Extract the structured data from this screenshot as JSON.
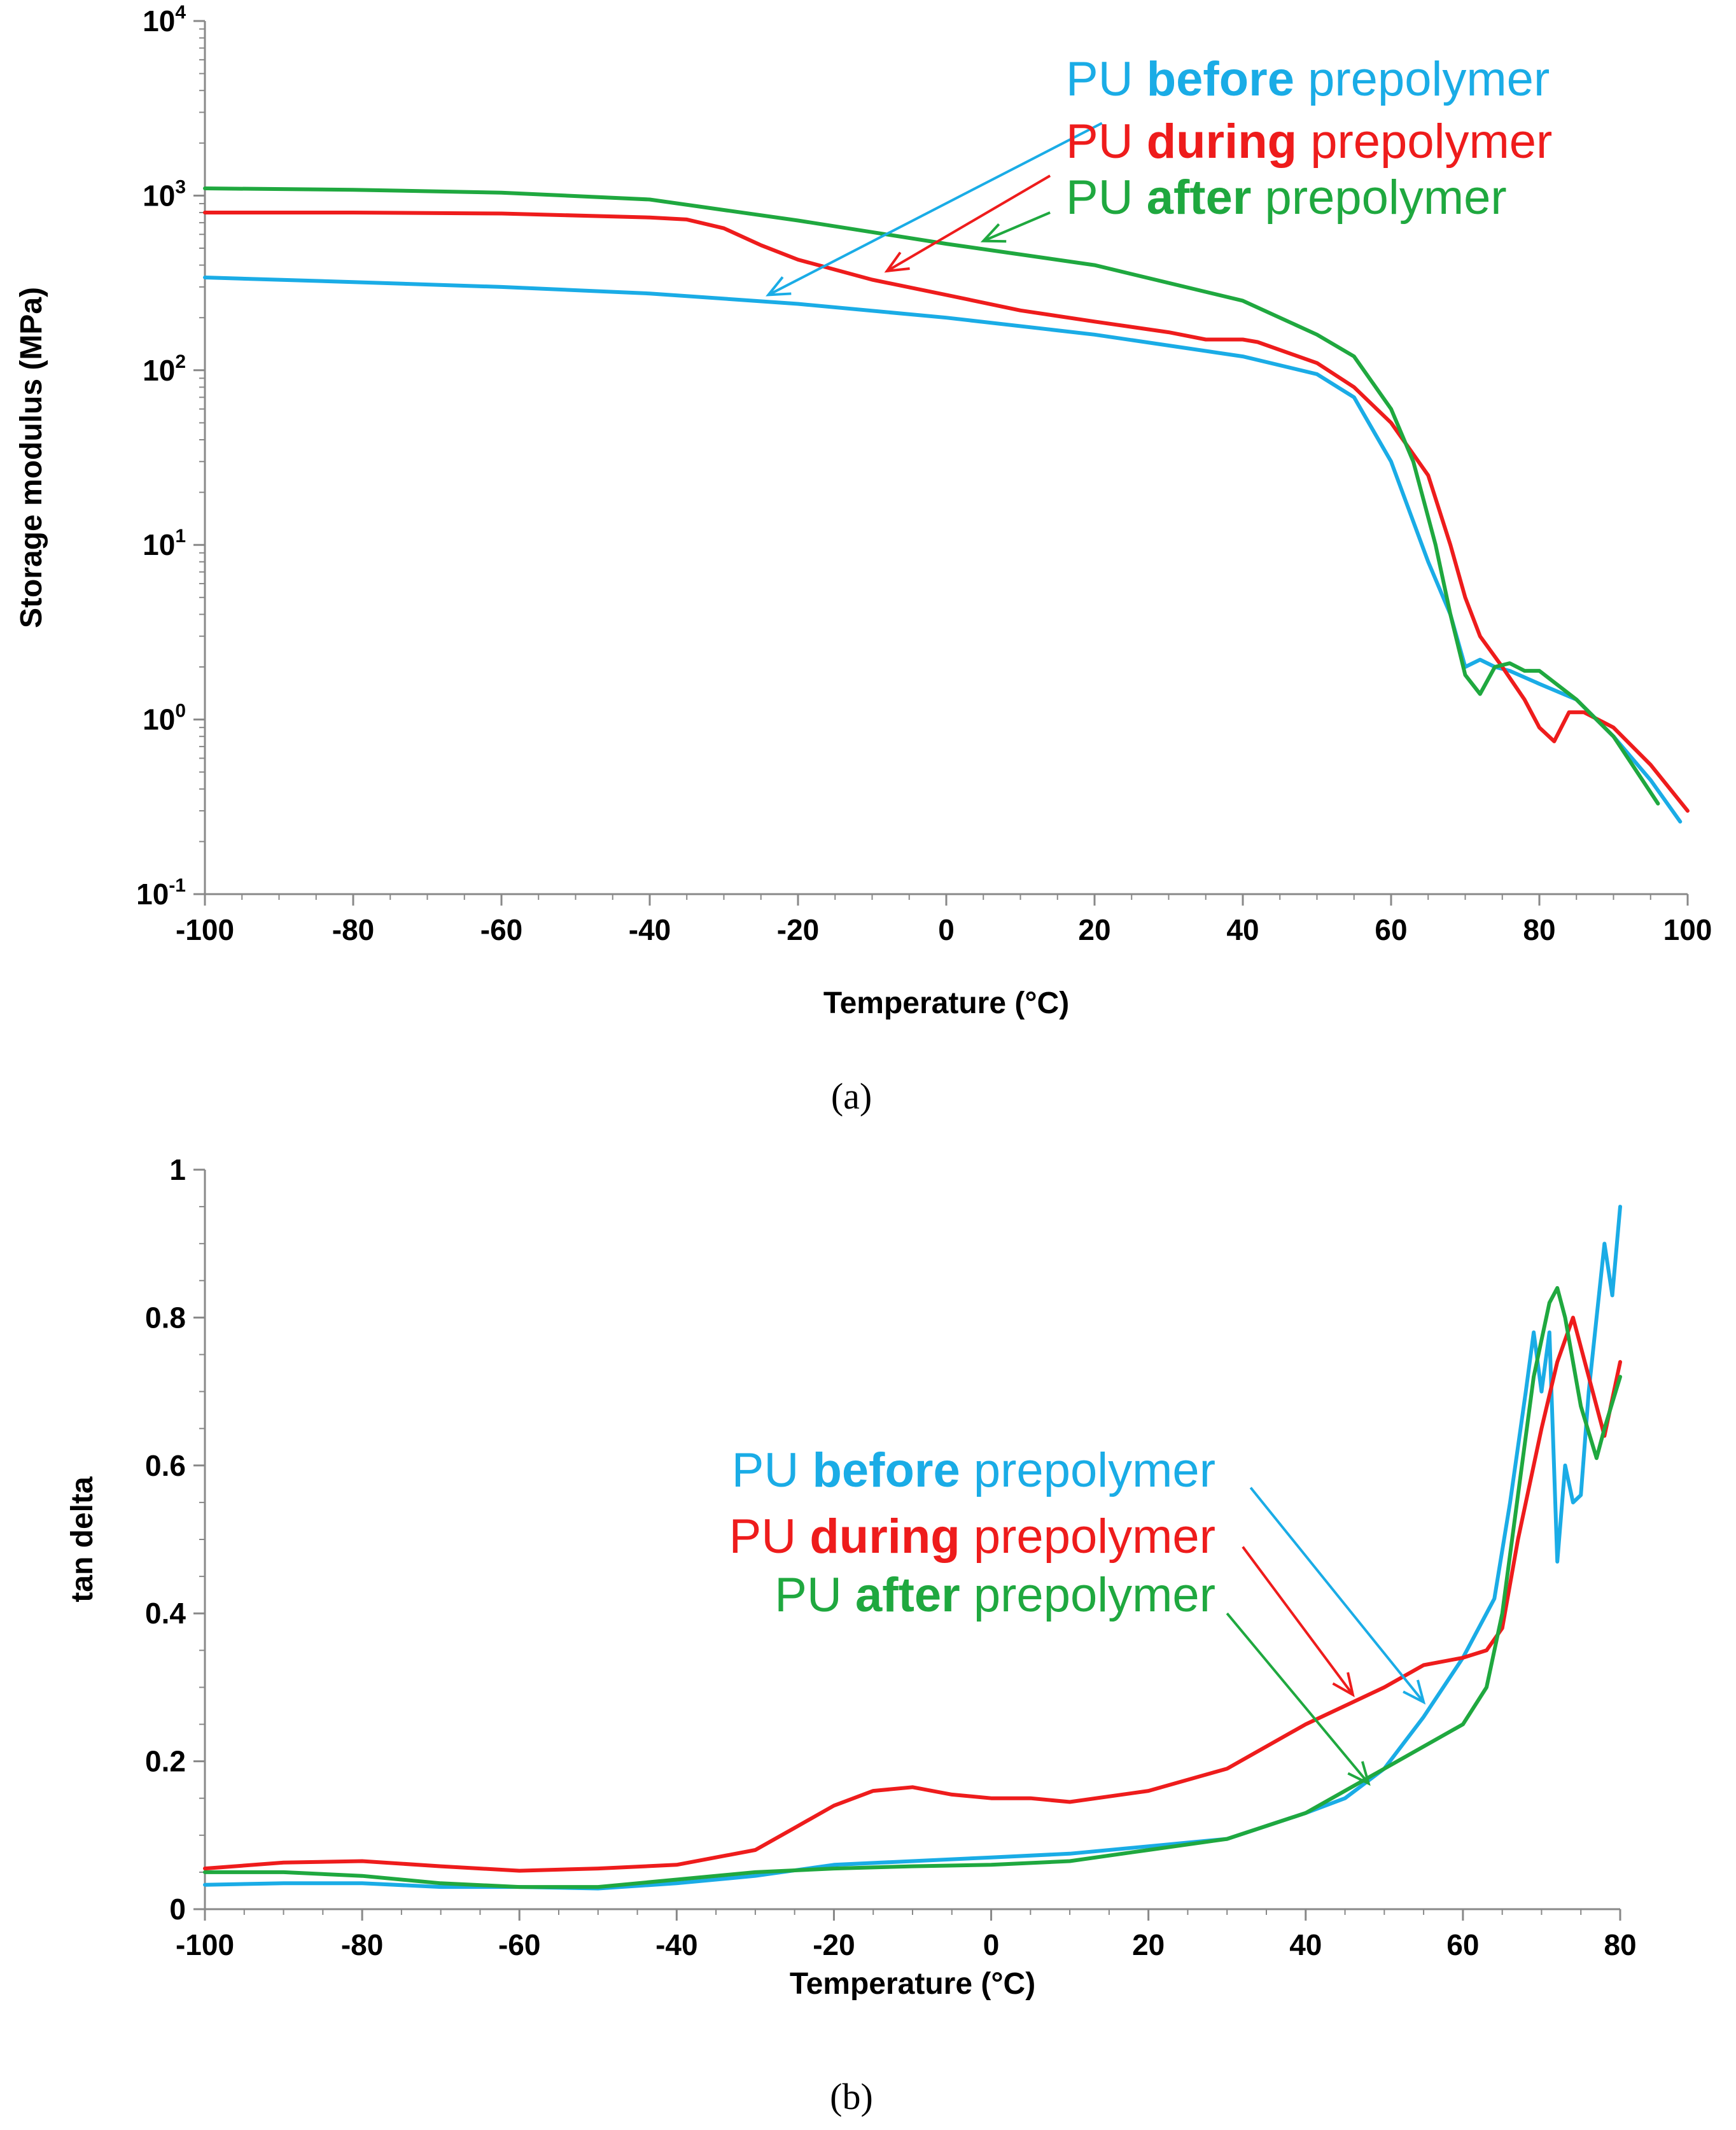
{
  "colors": {
    "before": "#1aace6",
    "during": "#ee1c1c",
    "after": "#1fa83f"
  },
  "chart_data": [
    {
      "type": "line",
      "caption": "(a)",
      "xlabel": "Temperature (°C)",
      "ylabel": "Storage modulus (MPa)",
      "yscale": "log",
      "xlim": [
        -100,
        100
      ],
      "ylim": [
        0.1,
        10000
      ],
      "xticks": [
        -100,
        -80,
        -60,
        -40,
        -20,
        0,
        20,
        40,
        60,
        80,
        100
      ],
      "yticks": [
        {
          "base": "10",
          "exp": "-1",
          "value": 0.1
        },
        {
          "base": "10",
          "exp": "0",
          "value": 1
        },
        {
          "base": "10",
          "exp": "1",
          "value": 10
        },
        {
          "base": "10",
          "exp": "2",
          "value": 100
        },
        {
          "base": "10",
          "exp": "3",
          "value": 1000
        },
        {
          "base": "10",
          "exp": "4",
          "value": 10000
        }
      ],
      "legend": [
        {
          "key": "before",
          "pre": "PU ",
          "bold": "before",
          "post": " prepolymer",
          "arrow_from": [
            21,
            2600
          ],
          "arrow_to": [
            -24,
            270
          ]
        },
        {
          "key": "during",
          "pre": "PU ",
          "bold": "during",
          "post": " prepolymer",
          "arrow_from": [
            14,
            1300
          ],
          "arrow_to": [
            -8,
            370
          ]
        },
        {
          "key": "after",
          "pre": "PU ",
          "bold": "after",
          "post": " prepolymer",
          "arrow_from": [
            14,
            800
          ],
          "arrow_to": [
            5,
            550
          ]
        }
      ],
      "series": [
        {
          "name": "PU before prepolymer",
          "key": "before",
          "x": [
            -100,
            -80,
            -60,
            -40,
            -20,
            0,
            20,
            40,
            50,
            55,
            60,
            65,
            68,
            70,
            72,
            74,
            76,
            80,
            85,
            90,
            95,
            99
          ],
          "y": [
            340,
            320,
            300,
            275,
            240,
            200,
            160,
            120,
            95,
            70,
            30,
            8,
            4,
            2.0,
            2.2,
            2.0,
            1.9,
            1.6,
            1.3,
            0.8,
            0.45,
            0.26
          ]
        },
        {
          "name": "PU during prepolymer",
          "key": "during",
          "x": [
            -100,
            -80,
            -60,
            -40,
            -35,
            -30,
            -25,
            -20,
            -10,
            0,
            10,
            20,
            30,
            35,
            40,
            42,
            50,
            55,
            60,
            65,
            68,
            70,
            72,
            75,
            78,
            80,
            82,
            84,
            86,
            90,
            95,
            100
          ],
          "y": [
            800,
            800,
            790,
            750,
            730,
            650,
            520,
            430,
            330,
            270,
            220,
            190,
            165,
            150,
            150,
            145,
            110,
            80,
            50,
            25,
            10,
            5,
            3,
            2.0,
            1.3,
            0.9,
            0.75,
            1.1,
            1.1,
            0.9,
            0.55,
            0.3
          ]
        },
        {
          "name": "PU after prepolymer",
          "key": "after",
          "x": [
            -100,
            -80,
            -60,
            -40,
            -20,
            0,
            20,
            40,
            50,
            55,
            60,
            63,
            66,
            68,
            70,
            72,
            74,
            76,
            78,
            80,
            85,
            90,
            96
          ],
          "y": [
            1100,
            1080,
            1040,
            950,
            720,
            530,
            400,
            250,
            160,
            120,
            60,
            30,
            10,
            4,
            1.8,
            1.4,
            2.0,
            2.1,
            1.9,
            1.9,
            1.3,
            0.8,
            0.33
          ]
        }
      ]
    },
    {
      "type": "line",
      "caption": "(b)",
      "xlabel": "Temperature (°C)",
      "ylabel": "tan delta",
      "yscale": "linear",
      "xlim": [
        -100,
        80
      ],
      "ylim": [
        0,
        1
      ],
      "xticks": [
        -100,
        -80,
        -60,
        -40,
        -20,
        0,
        20,
        40,
        60,
        80
      ],
      "yticks": [
        {
          "base": "0",
          "value": 0
        },
        {
          "base": "0.2",
          "value": 0.2
        },
        {
          "base": "0.4",
          "value": 0.4
        },
        {
          "base": "0.6",
          "value": 0.6
        },
        {
          "base": "0.8",
          "value": 0.8
        },
        {
          "base": "1",
          "value": 1
        }
      ],
      "legend": [
        {
          "key": "before",
          "pre": "PU ",
          "bold": "before",
          "post": " prepolymer",
          "arrow_from": [
            33,
            0.57
          ],
          "arrow_to": [
            55,
            0.28
          ]
        },
        {
          "key": "during",
          "pre": "PU ",
          "bold": "during",
          "post": " prepolymer",
          "arrow_from": [
            32,
            0.49
          ],
          "arrow_to": [
            46,
            0.29
          ]
        },
        {
          "key": "after",
          "pre": "PU ",
          "bold": "after",
          "post": " prepolymer",
          "arrow_from": [
            30,
            0.4
          ],
          "arrow_to": [
            48,
            0.17
          ]
        }
      ],
      "series": [
        {
          "name": "PU before prepolymer",
          "key": "before",
          "x": [
            -100,
            -90,
            -80,
            -70,
            -60,
            -50,
            -40,
            -30,
            -20,
            -10,
            0,
            10,
            20,
            30,
            40,
            45,
            50,
            55,
            60,
            64,
            66,
            68,
            69,
            70,
            71,
            72,
            73,
            74,
            75,
            76,
            77,
            78,
            79,
            80
          ],
          "y": [
            0.033,
            0.035,
            0.035,
            0.03,
            0.03,
            0.028,
            0.035,
            0.045,
            0.06,
            0.065,
            0.07,
            0.075,
            0.085,
            0.095,
            0.13,
            0.15,
            0.19,
            0.26,
            0.34,
            0.42,
            0.55,
            0.7,
            0.78,
            0.7,
            0.78,
            0.47,
            0.6,
            0.55,
            0.56,
            0.7,
            0.8,
            0.9,
            0.83,
            0.95
          ]
        },
        {
          "name": "PU during prepolymer",
          "key": "during",
          "x": [
            -100,
            -90,
            -80,
            -70,
            -60,
            -50,
            -40,
            -30,
            -25,
            -20,
            -15,
            -10,
            -5,
            0,
            5,
            10,
            20,
            30,
            40,
            50,
            55,
            60,
            63,
            65,
            67,
            70,
            72,
            74,
            76,
            78,
            80
          ],
          "y": [
            0.055,
            0.063,
            0.065,
            0.058,
            0.052,
            0.055,
            0.06,
            0.08,
            0.11,
            0.14,
            0.16,
            0.165,
            0.155,
            0.15,
            0.15,
            0.145,
            0.16,
            0.19,
            0.25,
            0.3,
            0.33,
            0.34,
            0.35,
            0.38,
            0.5,
            0.65,
            0.74,
            0.8,
            0.72,
            0.64,
            0.74
          ]
        },
        {
          "name": "PU after prepolymer",
          "key": "after",
          "x": [
            -100,
            -90,
            -80,
            -70,
            -60,
            -50,
            -40,
            -30,
            -20,
            -10,
            0,
            10,
            20,
            30,
            40,
            50,
            55,
            60,
            63,
            65,
            67,
            69,
            71,
            72,
            73,
            75,
            77,
            78,
            80
          ],
          "y": [
            0.05,
            0.05,
            0.045,
            0.035,
            0.03,
            0.03,
            0.04,
            0.05,
            0.055,
            0.058,
            0.06,
            0.065,
            0.08,
            0.095,
            0.13,
            0.19,
            0.22,
            0.25,
            0.3,
            0.4,
            0.56,
            0.72,
            0.82,
            0.84,
            0.8,
            0.68,
            0.61,
            0.65,
            0.72
          ]
        }
      ]
    }
  ]
}
